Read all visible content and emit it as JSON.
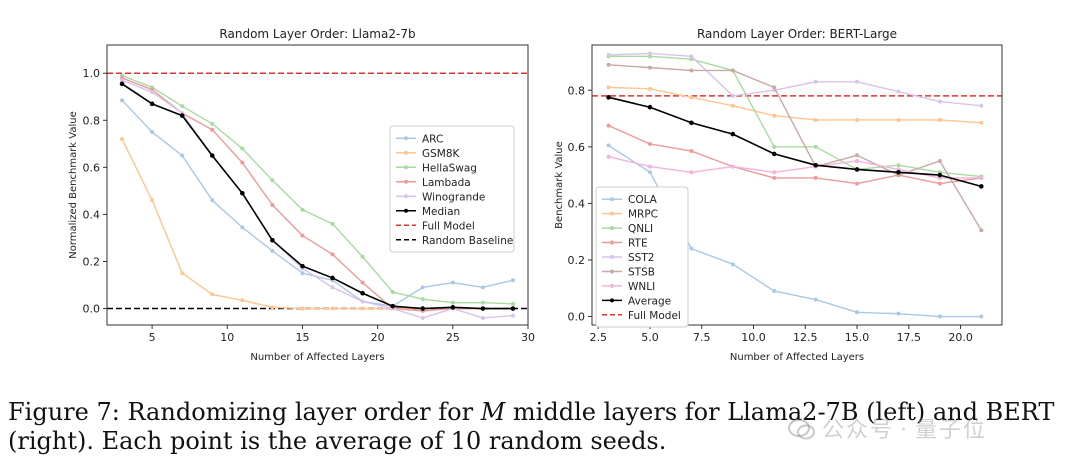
{
  "chart_data": [
    {
      "type": "line",
      "title": "Random Layer Order: Llama2-7b",
      "xlabel": "Number of Affected Layers",
      "ylabel": "Normalized Benchmark Value",
      "xlim": [
        2,
        30
      ],
      "ylim": [
        -0.07,
        1.12
      ],
      "xticks": [
        5,
        10,
        15,
        20,
        25,
        30
      ],
      "yticks": [
        0.0,
        0.2,
        0.4,
        0.6,
        0.8,
        1.0
      ],
      "ytick_labels": [
        "0.0",
        "0.2",
        "0.4",
        "0.6",
        "0.8",
        "1.0"
      ],
      "x": [
        3,
        5,
        7,
        9,
        11,
        13,
        15,
        17,
        19,
        21,
        23,
        25,
        27,
        29
      ],
      "legend_position": "center-right",
      "series": [
        {
          "name": "ARC",
          "color": "#aac8e4",
          "values": [
            0.885,
            0.75,
            0.65,
            0.46,
            0.345,
            0.245,
            0.15,
            0.12,
            0.03,
            0.01,
            0.09,
            0.11,
            0.09,
            0.12
          ]
        },
        {
          "name": "GSM8K",
          "color": "#ffc58f",
          "values": [
            0.72,
            0.46,
            0.15,
            0.06,
            0.035,
            0.005,
            0.0,
            0.0,
            0.0,
            0.0,
            0.0,
            0.0,
            0.0,
            0.0
          ]
        },
        {
          "name": "HellaSwag",
          "color": "#a8dba0",
          "values": [
            0.99,
            0.94,
            0.86,
            0.785,
            0.68,
            0.545,
            0.42,
            0.36,
            0.22,
            0.07,
            0.04,
            0.025,
            0.025,
            0.02
          ]
        },
        {
          "name": "Lambada",
          "color": "#ec9a9a",
          "values": [
            0.98,
            0.93,
            0.83,
            0.76,
            0.62,
            0.44,
            0.31,
            0.23,
            0.11,
            0.0,
            -0.01,
            0.0,
            0.0,
            0.0
          ]
        },
        {
          "name": "Winogrande",
          "color": "#d7c4ea",
          "values": [
            0.97,
            0.92,
            0.83,
            0.65,
            0.49,
            0.29,
            0.17,
            0.09,
            0.03,
            0.0,
            -0.04,
            0.0,
            -0.04,
            -0.03
          ]
        },
        {
          "name": "Median",
          "color": "#000000",
          "values": [
            0.955,
            0.87,
            0.82,
            0.65,
            0.49,
            0.29,
            0.18,
            0.13,
            0.065,
            0.01,
            0.0,
            0.005,
            0.0,
            0.0
          ]
        }
      ],
      "reference_lines": [
        {
          "name": "Full Model",
          "color": "#e03030",
          "y": 1.0
        },
        {
          "name": "Random Baseline",
          "color": "#000000",
          "y": 0.0
        }
      ]
    },
    {
      "type": "line",
      "title": "Random Layer Order: BERT-Large",
      "xlabel": "Number of Affected Layers",
      "ylabel": "Benchmark Value",
      "xlim": [
        2.2,
        22.0
      ],
      "ylim": [
        -0.03,
        0.96
      ],
      "xticks": [
        2.5,
        5.0,
        7.5,
        10.0,
        12.5,
        15.0,
        17.5,
        20.0
      ],
      "xtick_labels": [
        "2.5",
        "5.0",
        "7.5",
        "10.0",
        "12.5",
        "15.0",
        "17.5",
        "20.0"
      ],
      "yticks": [
        0.0,
        0.2,
        0.4,
        0.6,
        0.8
      ],
      "ytick_labels": [
        "0.0",
        "0.2",
        "0.4",
        "0.6",
        "0.8"
      ],
      "x": [
        3,
        5,
        7,
        9,
        11,
        13,
        15,
        17,
        19,
        21
      ],
      "legend_position": "lower-left",
      "series": [
        {
          "name": "COLA",
          "color": "#aac8e4",
          "values": [
            0.605,
            0.51,
            0.24,
            0.185,
            0.09,
            0.06,
            0.015,
            0.01,
            0.0,
            0.0
          ]
        },
        {
          "name": "MRPC",
          "color": "#ffc58f",
          "values": [
            0.81,
            0.805,
            0.775,
            0.745,
            0.71,
            0.695,
            0.695,
            0.695,
            0.695,
            0.685
          ]
        },
        {
          "name": "QNLI",
          "color": "#a8dba0",
          "values": [
            0.92,
            0.92,
            0.91,
            0.87,
            0.6,
            0.6,
            0.52,
            0.535,
            0.51,
            0.495
          ]
        },
        {
          "name": "RTE",
          "color": "#ec9a9a",
          "values": [
            0.675,
            0.61,
            0.585,
            0.53,
            0.49,
            0.49,
            0.47,
            0.5,
            0.47,
            0.49
          ]
        },
        {
          "name": "SST2",
          "color": "#d7c4ea",
          "values": [
            0.925,
            0.93,
            0.92,
            0.78,
            0.8,
            0.83,
            0.83,
            0.795,
            0.76,
            0.745
          ]
        },
        {
          "name": "STSB",
          "color": "#c9a9a4",
          "values": [
            0.89,
            0.88,
            0.87,
            0.87,
            0.81,
            0.53,
            0.57,
            0.5,
            0.55,
            0.305
          ]
        },
        {
          "name": "WNLI",
          "color": "#f4b3dc",
          "values": [
            0.565,
            0.53,
            0.51,
            0.53,
            0.51,
            0.53,
            0.55,
            0.52,
            0.49,
            0.49
          ]
        },
        {
          "name": "Average",
          "color": "#000000",
          "values": [
            0.775,
            0.74,
            0.685,
            0.645,
            0.575,
            0.535,
            0.52,
            0.51,
            0.5,
            0.46
          ]
        }
      ],
      "reference_lines": [
        {
          "name": "Full Model",
          "color": "#e03030",
          "y": 0.78
        }
      ]
    }
  ],
  "caption": {
    "prefix": "Figure 7: Randomizing layer order for ",
    "variable": "M",
    "suffix": " middle layers for Llama2-7B (left) and BERT (right). Each point is the average of 10 random seeds."
  },
  "watermark": {
    "left": "公众号",
    "right": "量子位"
  }
}
